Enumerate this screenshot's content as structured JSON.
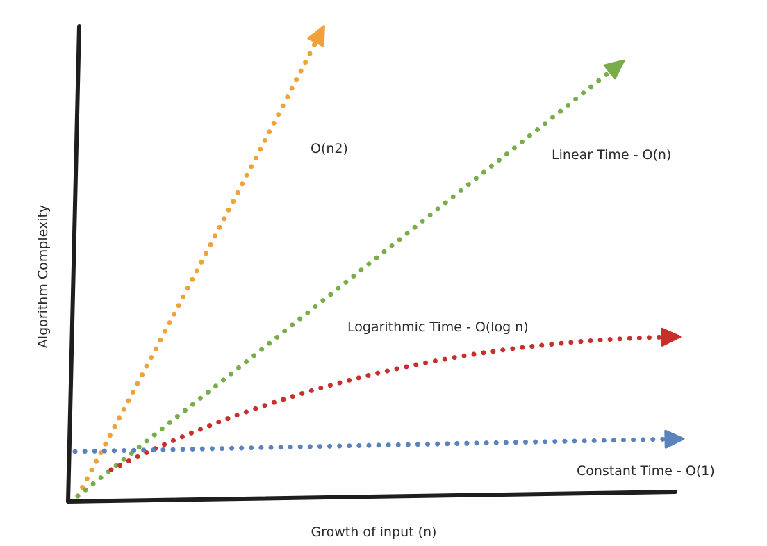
{
  "chart_data": {
    "type": "line",
    "title": "",
    "xlabel": "Growth of input (n)",
    "ylabel": "Algorithm Complexity",
    "axis_ticks": false,
    "grid": false,
    "legend": "none",
    "line_style": "dotted, arrowheads at line ends",
    "series": [
      {
        "key": "quadratic",
        "name": "O(n2)",
        "color": "#f0a23a",
        "shape": "quadratic"
      },
      {
        "key": "linear",
        "name": "Linear Time - O(n)",
        "color": "#78ad4a",
        "shape": "linear"
      },
      {
        "key": "log",
        "name": "Logarithmic Time - O(log n)",
        "color": "#c7302a",
        "shape": "logarithmic"
      },
      {
        "key": "constant",
        "name": "Constant Time - O(1)",
        "color": "#5b82bb",
        "shape": "constant"
      }
    ]
  }
}
